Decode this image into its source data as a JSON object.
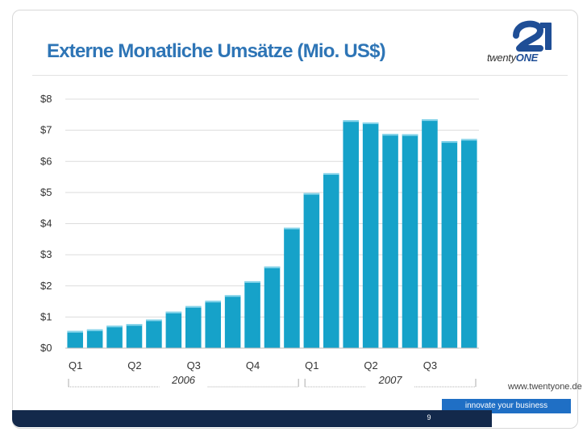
{
  "slide": {
    "title": "Externe Monatliche Umsätze (Mio. US$)",
    "website": "www.twentyone.de",
    "tagline": "innovate your business",
    "page_number": "9",
    "logo": {
      "mark_icon": "21-logo-icon",
      "word_part1": "twenty",
      "word_part2": "ONE"
    }
  },
  "colors": {
    "title": "#2e75b6",
    "bar": "#16a2c9",
    "bar_top": "#86d4ea",
    "footer": "#13294b",
    "tagline_bg": "#1f6fc5",
    "logo": "#1f4e96"
  },
  "chart_data": {
    "type": "bar",
    "title": "Externe Monatliche Umsätze (Mio. US$)",
    "xlabel": "",
    "ylabel": "",
    "ylim": [
      0,
      8
    ],
    "yticks": [
      0,
      1,
      2,
      3,
      4,
      5,
      6,
      7,
      8
    ],
    "ytick_labels": [
      "$0",
      "$1",
      "$2",
      "$3",
      "$4",
      "$5",
      "$6",
      "$7",
      "$8"
    ],
    "grid": true,
    "values": [
      0.55,
      0.6,
      0.72,
      0.77,
      0.92,
      1.17,
      1.35,
      1.52,
      1.7,
      2.15,
      2.62,
      3.87,
      4.98,
      5.62,
      7.32,
      7.25,
      6.88,
      6.87,
      7.35,
      6.65,
      6.72
    ],
    "quarter_labels": [
      {
        "label": "Q1",
        "start": 0,
        "end": 2
      },
      {
        "label": "Q2",
        "start": 3,
        "end": 5
      },
      {
        "label": "Q3",
        "start": 6,
        "end": 8
      },
      {
        "label": "Q4",
        "start": 9,
        "end": 11
      },
      {
        "label": "Q1",
        "start": 12,
        "end": 14
      },
      {
        "label": "Q2",
        "start": 15,
        "end": 17
      },
      {
        "label": "Q3",
        "start": 18,
        "end": 20
      }
    ],
    "year_labels": [
      {
        "label": "2006",
        "start": 0,
        "end": 11
      },
      {
        "label": "2007",
        "start": 12,
        "end": 20
      }
    ]
  }
}
